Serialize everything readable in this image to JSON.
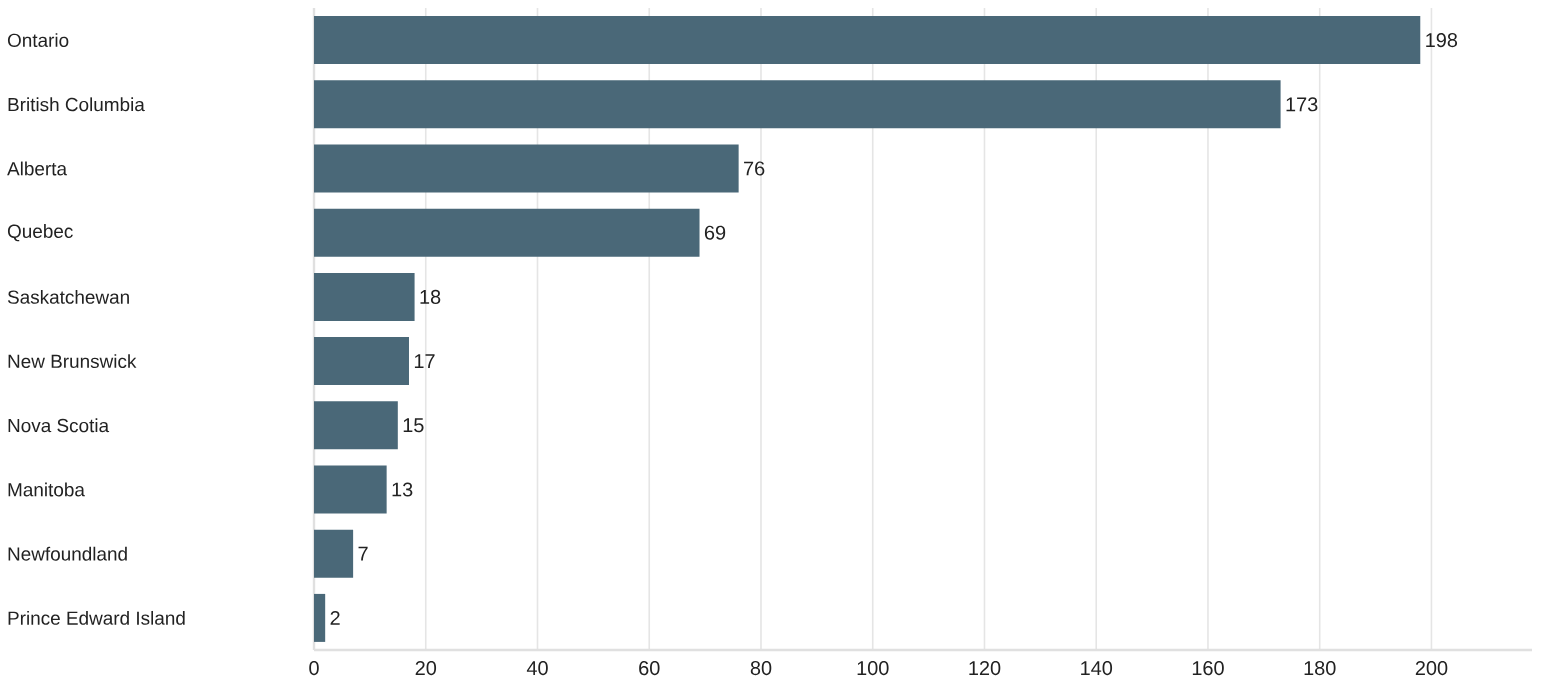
{
  "chart_data": {
    "type": "bar",
    "orientation": "horizontal",
    "categories": [
      "Ontario",
      "British Columbia",
      "Alberta",
      "Quebec",
      "Saskatchewan",
      "New Brunswick",
      "Nova Scotia",
      "Manitoba",
      "Newfoundland",
      "Prince Edward Island"
    ],
    "values": [
      198,
      173,
      76,
      69,
      18,
      17,
      15,
      13,
      7,
      2
    ],
    "color": "#4a6878",
    "xlim": [
      0,
      218
    ],
    "xticks": [
      0,
      20,
      40,
      60,
      80,
      100,
      120,
      140,
      160,
      180,
      200
    ],
    "grid": "x",
    "data_labels": true
  }
}
